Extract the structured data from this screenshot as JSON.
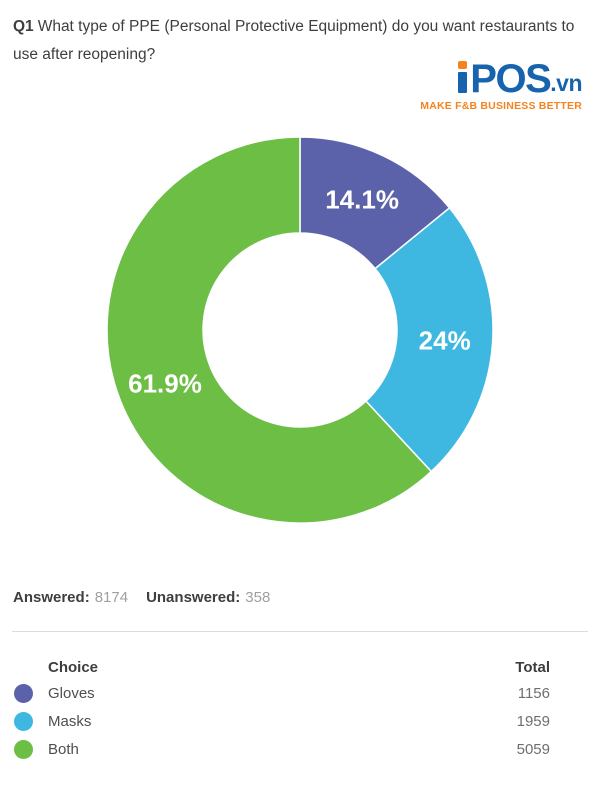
{
  "question": {
    "number": "Q1",
    "text": "What type of PPE (Personal Protective Equipment) do you want restaurants to use after reopening?"
  },
  "logo": {
    "brand": "POS",
    "tld": ".vn",
    "tagline": "MAKE F&B BUSINESS BETTER",
    "blue": "#1763AE",
    "orange": "#F5831F"
  },
  "stats": {
    "answered_label": "Answered:",
    "answered_value": "8174",
    "unanswered_label": "Unanswered:",
    "unanswered_value": "358"
  },
  "table": {
    "choice_header": "Choice",
    "total_header": "Total",
    "rows": [
      {
        "label": "Gloves",
        "total": "1156",
        "color": "#5B62AA"
      },
      {
        "label": "Masks",
        "total": "1959",
        "color": "#3FB8E1"
      },
      {
        "label": "Both",
        "total": "5059",
        "color": "#6CBE45"
      }
    ]
  },
  "chart_data": {
    "type": "pie",
    "subtype": "donut",
    "start_angle_deg": 0,
    "direction": "clockwise",
    "inner_radius_ratio": 0.5,
    "segments": [
      {
        "label": "Gloves",
        "value": 1156,
        "percent": 14.1,
        "display": "14.1%",
        "color": "#5B62AA"
      },
      {
        "label": "Masks",
        "value": 1959,
        "percent": 24,
        "display": "24%",
        "color": "#3FB8E1"
      },
      {
        "label": "Both",
        "value": 5059,
        "percent": 61.9,
        "display": "61.9%",
        "color": "#6CBE45"
      }
    ],
    "answered": 8174,
    "unanswered": 358,
    "legend_position": "table-below"
  }
}
